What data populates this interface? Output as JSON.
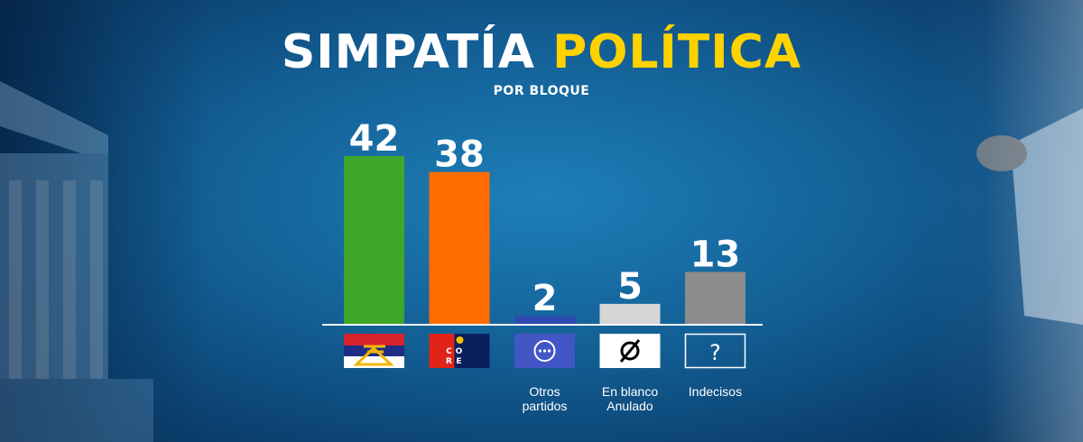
{
  "title": {
    "part1": "SIMPATÍA",
    "part2": "POLÍTICA"
  },
  "subtitle": "POR BLOQUE",
  "colors": {
    "title_white": "#ffffff",
    "title_yellow": "#ffd200"
  },
  "chart_data": {
    "type": "bar",
    "title": "SIMPATÍA POLÍTICA",
    "subtitle": "POR BLOQUE",
    "categories": [
      "Frente Amplio",
      "Coalición Republicana",
      "Otros partidos",
      "En blanco / Anulado",
      "Indecisos"
    ],
    "category_labels": [
      [],
      [],
      [
        "Otros",
        "partidos"
      ],
      [
        "En blanco",
        "Anulado"
      ],
      [
        "Indecisos"
      ]
    ],
    "icons": [
      "frente-amplio-flag-icon",
      "coalicion-republicana-flag-icon",
      "more-dots-icon",
      "empty-set-icon",
      "question-mark-icon"
    ],
    "icon_text": {
      "core": [
        "C",
        "O",
        "R",
        "E"
      ],
      "question": "?"
    },
    "values": [
      42,
      38,
      2,
      5,
      13
    ],
    "colors": [
      "#3fa629",
      "#ff6d00",
      "#2e49b0",
      "#d6d6d6",
      "#8c8c8c"
    ],
    "ylim": [
      0,
      42
    ],
    "grid": false,
    "legend": "none"
  }
}
